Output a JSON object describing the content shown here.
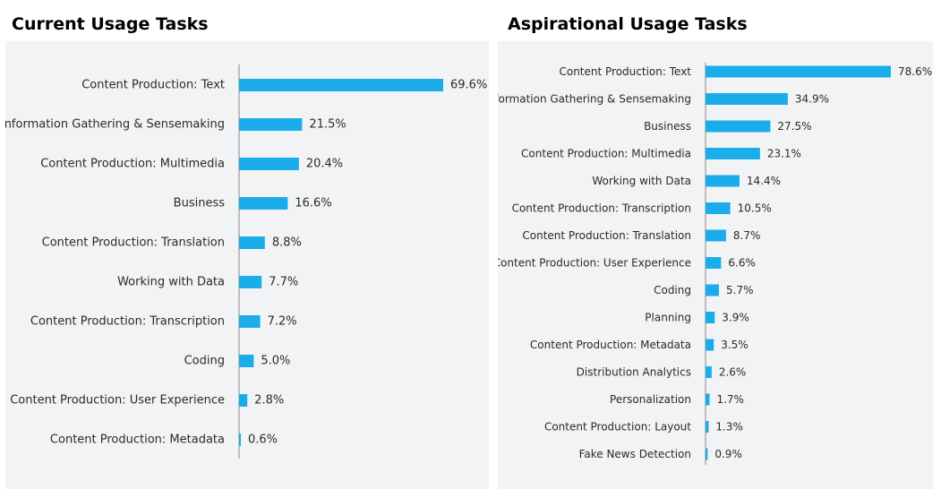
{
  "colors": {
    "bar": "#1badeb",
    "axis": "#8a8a8a",
    "panel": "#f2f3f4"
  },
  "chart_data": [
    {
      "type": "bar",
      "orientation": "horizontal",
      "title": "Current Usage Tasks",
      "xlim": [
        0,
        69.6
      ],
      "grid": false,
      "categories": [
        "Content Production: Text",
        "Information Gathering & Sensemaking",
        "Content Production: Multimedia",
        "Business",
        "Content Production: Translation",
        "Working with Data",
        "Content Production: Transcription",
        "Coding",
        "Content Production: User Experience",
        "Content Production: Metadata"
      ],
      "values": [
        69.6,
        21.5,
        20.4,
        16.6,
        8.8,
        7.7,
        7.2,
        5.0,
        2.8,
        0.6
      ],
      "value_labels": [
        "69.6%",
        "21.5%",
        "20.4%",
        "16.6%",
        "8.8%",
        "7.7%",
        "7.2%",
        "5.0%",
        "2.8%",
        "0.6%"
      ]
    },
    {
      "type": "bar",
      "orientation": "horizontal",
      "title": "Aspirational Usage Tasks",
      "xlim": [
        0,
        78.6
      ],
      "grid": false,
      "categories": [
        "Content Production: Text",
        "Information Gathering & Sensemaking",
        "Business",
        "Content Production: Multimedia",
        "Working with Data",
        "Content Production: Transcription",
        "Content Production: Translation",
        "Content Production: User Experience",
        "Coding",
        "Planning",
        "Content Production: Metadata",
        "Distribution Analytics",
        "Personalization",
        "Content Production: Layout",
        "Fake News Detection"
      ],
      "values": [
        78.6,
        34.9,
        27.5,
        23.1,
        14.4,
        10.5,
        8.7,
        6.6,
        5.7,
        3.9,
        3.5,
        2.6,
        1.7,
        1.3,
        0.9
      ],
      "value_labels": [
        "78.6%",
        "34.9%",
        "27.5%",
        "23.1%",
        "14.4%",
        "10.5%",
        "8.7%",
        "6.6%",
        "5.7%",
        "3.9%",
        "3.5%",
        "2.6%",
        "1.7%",
        "1.3%",
        "0.9%"
      ]
    }
  ]
}
